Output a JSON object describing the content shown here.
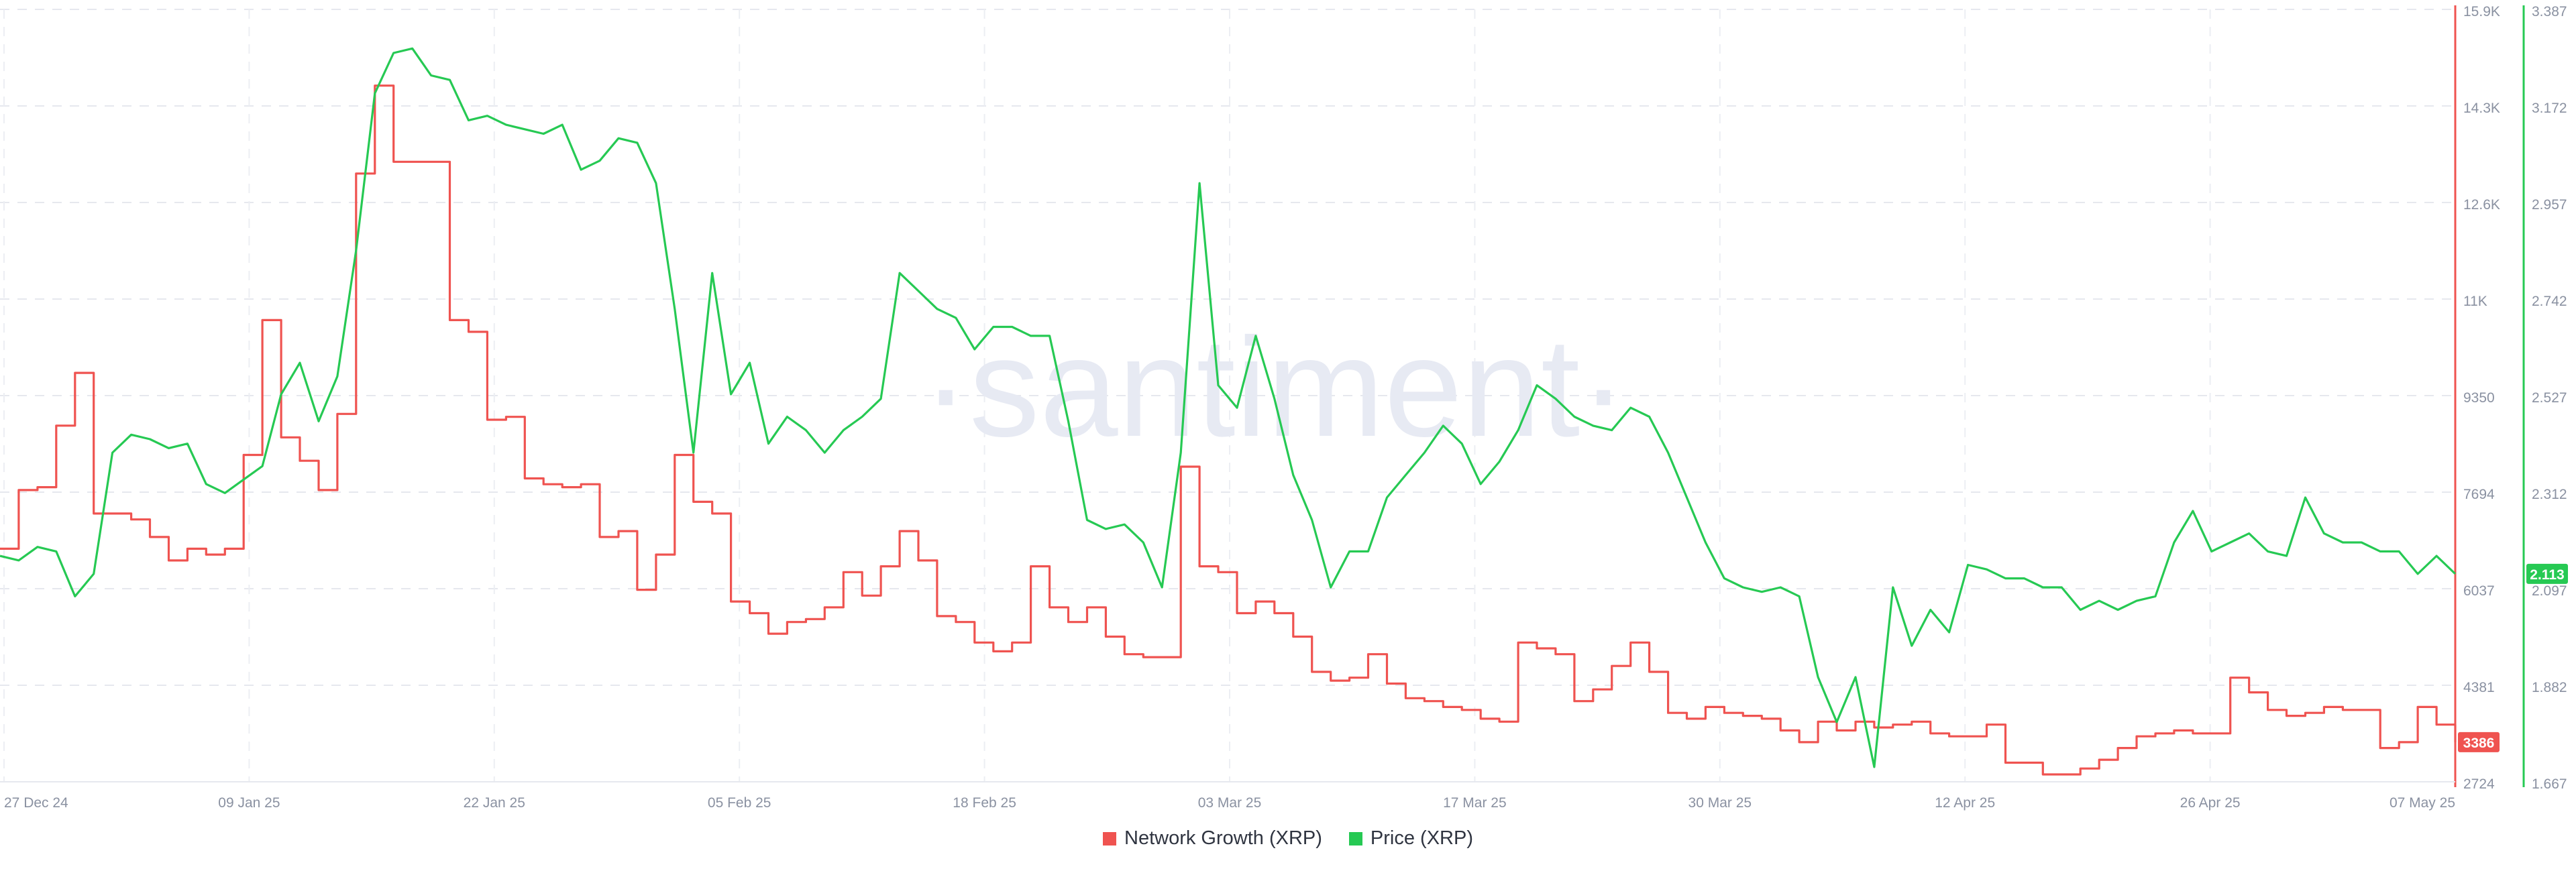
{
  "chart_data": {
    "type": "line",
    "watermark": "·santiment·",
    "x_ticks": [
      "27 Dec 24",
      "09 Jan 25",
      "22 Jan 25",
      "05 Feb 25",
      "18 Feb 25",
      "03 Mar 25",
      "17 Mar 25",
      "30 Mar 25",
      "12 Apr 25",
      "26 Apr 25",
      "07 May 25"
    ],
    "x_range": [
      "2024-12-27",
      "2025-05-07"
    ],
    "grid": true,
    "legend_position": "bottom-center",
    "axes": {
      "network_growth": {
        "side": "right",
        "color": "#ef5350",
        "ticks": [
          "15.9K",
          "14.3K",
          "12.6K",
          "11K",
          "9350",
          "7694",
          "6037",
          "4381",
          "2724"
        ],
        "ylim": [
          2724,
          15900
        ],
        "current_label": "3386"
      },
      "price": {
        "side": "right",
        "color": "#26c953",
        "ticks": [
          "3.387",
          "3.172",
          "2.957",
          "2.742",
          "2.527",
          "2.312",
          "2.097",
          "1.882",
          "1.667"
        ],
        "ylim": [
          1.667,
          3.387
        ],
        "current_label": "2.113"
      }
    },
    "series": [
      {
        "name": "Network Growth (XRP)",
        "axis": "network_growth",
        "color": "#ef5350",
        "step": true,
        "x": [
          "2024-12-27",
          "2024-12-28",
          "2024-12-29",
          "2024-12-30",
          "2024-12-31",
          "2025-01-01",
          "2025-01-02",
          "2025-01-03",
          "2025-01-04",
          "2025-01-05",
          "2025-01-06",
          "2025-01-07",
          "2025-01-08",
          "2025-01-09",
          "2025-01-10",
          "2025-01-11",
          "2025-01-12",
          "2025-01-13",
          "2025-01-14",
          "2025-01-15",
          "2025-01-16",
          "2025-01-17",
          "2025-01-18",
          "2025-01-19",
          "2025-01-20",
          "2025-01-21",
          "2025-01-22",
          "2025-01-23",
          "2025-01-24",
          "2025-01-25",
          "2025-01-26",
          "2025-01-27",
          "2025-01-28",
          "2025-01-29",
          "2025-01-30",
          "2025-01-31",
          "2025-02-01",
          "2025-02-02",
          "2025-02-03",
          "2025-02-04",
          "2025-02-05",
          "2025-02-06",
          "2025-02-07",
          "2025-02-08",
          "2025-02-09",
          "2025-02-10",
          "2025-02-11",
          "2025-02-12",
          "2025-02-13",
          "2025-02-14",
          "2025-02-15",
          "2025-02-16",
          "2025-02-17",
          "2025-02-18",
          "2025-02-19",
          "2025-02-20",
          "2025-02-21",
          "2025-02-22",
          "2025-02-23",
          "2025-02-24",
          "2025-02-25",
          "2025-02-26",
          "2025-02-27",
          "2025-02-28",
          "2025-03-01",
          "2025-03-02",
          "2025-03-03",
          "2025-03-04",
          "2025-03-05",
          "2025-03-06",
          "2025-03-07",
          "2025-03-08",
          "2025-03-09",
          "2025-03-10",
          "2025-03-11",
          "2025-03-12",
          "2025-03-13",
          "2025-03-14",
          "2025-03-15",
          "2025-03-16",
          "2025-03-17",
          "2025-03-18",
          "2025-03-19",
          "2025-03-20",
          "2025-03-21",
          "2025-03-22",
          "2025-03-23",
          "2025-03-24",
          "2025-03-25",
          "2025-03-26",
          "2025-03-27",
          "2025-03-28",
          "2025-03-29",
          "2025-03-30",
          "2025-03-31",
          "2025-04-01",
          "2025-04-02",
          "2025-04-03",
          "2025-04-04",
          "2025-04-05",
          "2025-04-06",
          "2025-04-07",
          "2025-04-08",
          "2025-04-09",
          "2025-04-10",
          "2025-04-11",
          "2025-04-12",
          "2025-04-13",
          "2025-04-14",
          "2025-04-15",
          "2025-04-16",
          "2025-04-17",
          "2025-04-18",
          "2025-04-19",
          "2025-04-20",
          "2025-04-21",
          "2025-04-22",
          "2025-04-23",
          "2025-04-24",
          "2025-04-25",
          "2025-04-26",
          "2025-04-27",
          "2025-04-28",
          "2025-04-29",
          "2025-04-30",
          "2025-05-01",
          "2025-05-02",
          "2025-05-03",
          "2025-05-04",
          "2025-05-05",
          "2025-05-06",
          "2025-05-07"
        ],
        "values": [
          6700,
          7700,
          7750,
          8800,
          9700,
          7300,
          7300,
          7200,
          6900,
          6500,
          6700,
          6600,
          6700,
          8300,
          10600,
          8600,
          8200,
          7700,
          9000,
          13100,
          14600,
          13300,
          13300,
          13300,
          10600,
          10400,
          8900,
          8950,
          7900,
          7800,
          7750,
          7800,
          6900,
          7000,
          6000,
          6600,
          8300,
          7500,
          7300,
          5800,
          5600,
          5250,
          5450,
          5500,
          5700,
          6300,
          5900,
          6400,
          7000,
          6500,
          5550,
          5450,
          5100,
          4950,
          5100,
          6400,
          5700,
          5450,
          5700,
          5200,
          4900,
          4850,
          4850,
          8100,
          6400,
          6300,
          5600,
          5800,
          5600,
          5200,
          4600,
          4450,
          4500,
          4900,
          4400,
          4150,
          4100,
          4000,
          3950,
          3800,
          3750,
          5100,
          5000,
          4900,
          4100,
          4300,
          4700,
          5100,
          4600,
          3900,
          3800,
          4000,
          3900,
          3850,
          3800,
          3600,
          3400,
          3750,
          3600,
          3750,
          3650,
          3700,
          3750,
          3550,
          3500,
          3500,
          3700,
          3050,
          3050,
          2850,
          2850,
          2950,
          3100,
          3300,
          3500,
          3550,
          3600,
          3550,
          3550,
          4500,
          4250,
          3950,
          3850,
          3900,
          4000,
          3950,
          3950,
          3300,
          3400,
          4000,
          3700,
          3400
        ]
      },
      {
        "name": "Price (XRP)",
        "axis": "price",
        "color": "#26c953",
        "x": [
          "2024-12-27",
          "2024-12-28",
          "2024-12-29",
          "2024-12-30",
          "2024-12-31",
          "2025-01-01",
          "2025-01-02",
          "2025-01-03",
          "2025-01-04",
          "2025-01-05",
          "2025-01-06",
          "2025-01-07",
          "2025-01-08",
          "2025-01-09",
          "2025-01-10",
          "2025-01-11",
          "2025-01-12",
          "2025-01-13",
          "2025-01-14",
          "2025-01-15",
          "2025-01-16",
          "2025-01-17",
          "2025-01-18",
          "2025-01-19",
          "2025-01-20",
          "2025-01-21",
          "2025-01-22",
          "2025-01-23",
          "2025-01-24",
          "2025-01-25",
          "2025-01-26",
          "2025-01-27",
          "2025-01-28",
          "2025-01-29",
          "2025-01-30",
          "2025-01-31",
          "2025-02-01",
          "2025-02-02",
          "2025-02-03",
          "2025-02-04",
          "2025-02-05",
          "2025-02-06",
          "2025-02-07",
          "2025-02-08",
          "2025-02-09",
          "2025-02-10",
          "2025-02-11",
          "2025-02-12",
          "2025-02-13",
          "2025-02-14",
          "2025-02-15",
          "2025-02-16",
          "2025-02-17",
          "2025-02-18",
          "2025-02-19",
          "2025-02-20",
          "2025-02-21",
          "2025-02-22",
          "2025-02-23",
          "2025-02-24",
          "2025-02-25",
          "2025-02-26",
          "2025-02-27",
          "2025-02-28",
          "2025-03-01",
          "2025-03-02",
          "2025-03-03",
          "2025-03-04",
          "2025-03-05",
          "2025-03-06",
          "2025-03-07",
          "2025-03-08",
          "2025-03-09",
          "2025-03-10",
          "2025-03-11",
          "2025-03-12",
          "2025-03-13",
          "2025-03-14",
          "2025-03-15",
          "2025-03-16",
          "2025-03-17",
          "2025-03-18",
          "2025-03-19",
          "2025-03-20",
          "2025-03-21",
          "2025-03-22",
          "2025-03-23",
          "2025-03-24",
          "2025-03-25",
          "2025-03-26",
          "2025-03-27",
          "2025-03-28",
          "2025-03-29",
          "2025-03-30",
          "2025-03-31",
          "2025-04-01",
          "2025-04-02",
          "2025-04-03",
          "2025-04-04",
          "2025-04-05",
          "2025-04-06",
          "2025-04-07",
          "2025-04-08",
          "2025-04-09",
          "2025-04-10",
          "2025-04-11",
          "2025-04-12",
          "2025-04-13",
          "2025-04-14",
          "2025-04-15",
          "2025-04-16",
          "2025-04-17",
          "2025-04-18",
          "2025-04-19",
          "2025-04-20",
          "2025-04-21",
          "2025-04-22",
          "2025-04-23",
          "2025-04-24",
          "2025-04-25",
          "2025-04-26",
          "2025-04-27",
          "2025-04-28",
          "2025-04-29",
          "2025-04-30",
          "2025-05-01",
          "2025-05-02",
          "2025-05-03",
          "2025-05-04",
          "2025-05-05",
          "2025-05-06",
          "2025-05-07"
        ],
        "values": [
          2.17,
          2.16,
          2.19,
          2.18,
          2.08,
          2.13,
          2.4,
          2.44,
          2.43,
          2.41,
          2.42,
          2.33,
          2.31,
          2.34,
          2.37,
          2.53,
          2.6,
          2.47,
          2.57,
          2.85,
          3.2,
          3.29,
          3.3,
          3.24,
          3.23,
          3.14,
          3.15,
          3.13,
          3.12,
          3.11,
          3.13,
          3.03,
          3.05,
          3.1,
          3.09,
          3.0,
          2.72,
          2.4,
          2.8,
          2.53,
          2.6,
          2.42,
          2.48,
          2.45,
          2.4,
          2.45,
          2.48,
          2.52,
          2.8,
          2.76,
          2.72,
          2.7,
          2.63,
          2.68,
          2.68,
          2.66,
          2.66,
          2.47,
          2.25,
          2.23,
          2.24,
          2.2,
          2.1,
          2.4,
          3.0,
          2.55,
          2.5,
          2.66,
          2.52,
          2.35,
          2.25,
          2.1,
          2.18,
          2.18,
          2.3,
          2.35,
          2.4,
          2.46,
          2.42,
          2.33,
          2.38,
          2.45,
          2.55,
          2.52,
          2.48,
          2.46,
          2.45,
          2.5,
          2.48,
          2.4,
          2.3,
          2.2,
          2.12,
          2.1,
          2.09,
          2.1,
          2.08,
          1.9,
          1.8,
          1.9,
          1.7,
          2.1,
          1.97,
          2.05,
          2.0,
          2.15,
          2.14,
          2.12,
          2.12,
          2.1,
          2.1,
          2.05,
          2.07,
          2.05,
          2.07,
          2.08,
          2.2,
          2.27,
          2.18,
          2.2,
          2.22,
          2.18,
          2.17,
          2.3,
          2.22,
          2.2,
          2.2,
          2.18,
          2.18,
          2.13,
          2.17,
          2.13
        ]
      }
    ]
  }
}
